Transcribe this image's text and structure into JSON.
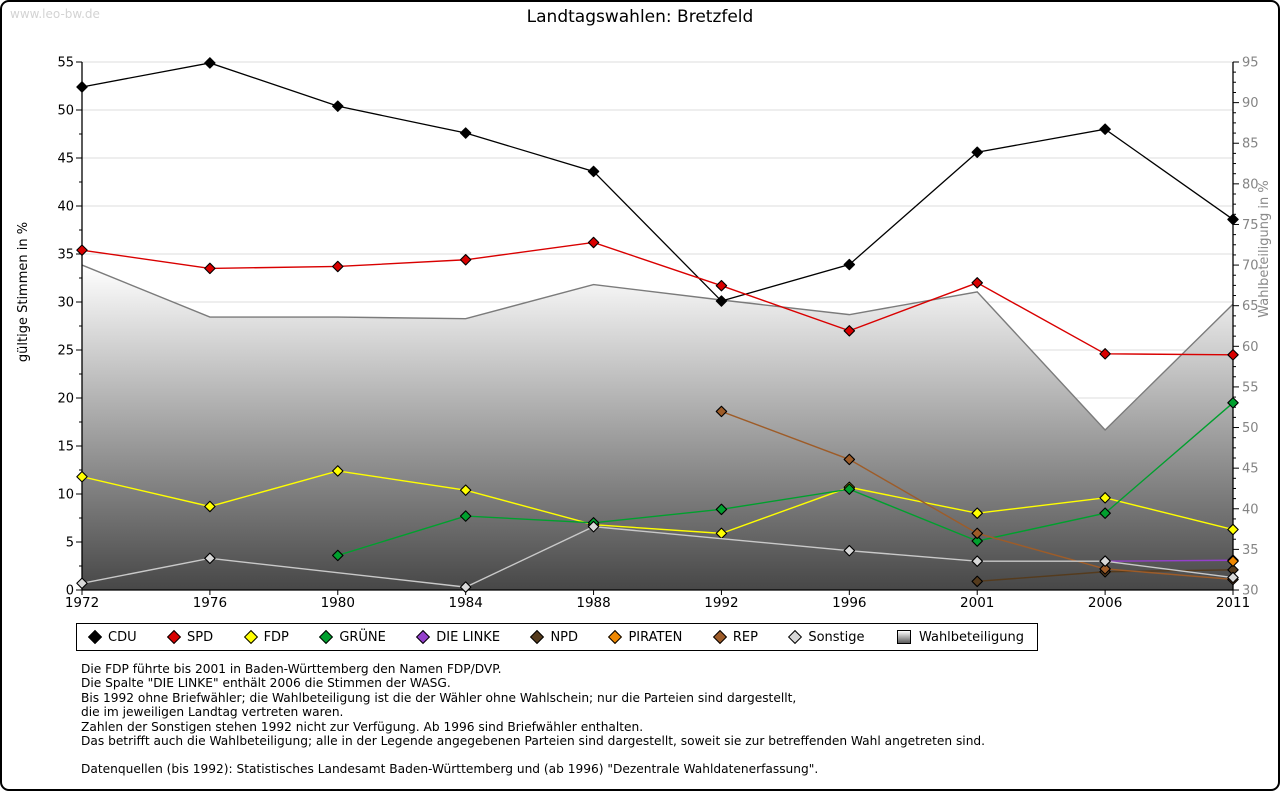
{
  "watermark": "www.leo-bw.de",
  "title": "Landtagswahlen: Bretzfeld",
  "chart_data": {
    "type": "line",
    "x": [
      "1972",
      "1976",
      "1980",
      "1984",
      "1988",
      "1992",
      "1996",
      "2001",
      "2006",
      "2011"
    ],
    "left_axis": {
      "label": "gültige Stimmen in %",
      "min": 0,
      "max": 55,
      "tick_step": 5,
      "minor_step": 2.5
    },
    "right_axis": {
      "label": "Wahlbeteiligung in %",
      "min": 30,
      "max": 95,
      "tick_step": 5,
      "minor_step": 1.25
    },
    "grid": "horizontal lines at every 5 units of left axis",
    "legend_position": "bottom",
    "series": [
      {
        "name": "Wahlbeteiligung",
        "type": "area",
        "axis": "right",
        "color": "#7b7b7b",
        "fill_top": "#ffffff",
        "fill_bottom": "#474747",
        "values": [
          70.0,
          63.6,
          63.6,
          63.4,
          67.6,
          65.7,
          63.9,
          66.7,
          49.7,
          65.2
        ]
      },
      {
        "name": "CDU",
        "type": "line",
        "axis": "left",
        "color": "#000000",
        "values": [
          52.4,
          54.9,
          50.4,
          47.6,
          43.6,
          30.1,
          33.9,
          45.6,
          48.0,
          38.6
        ]
      },
      {
        "name": "SPD",
        "type": "line",
        "axis": "left",
        "color": "#d90000",
        "values": [
          35.4,
          33.5,
          33.7,
          34.4,
          36.2,
          31.7,
          27.0,
          32.0,
          24.6,
          24.5
        ]
      },
      {
        "name": "FDP",
        "type": "line",
        "axis": "left",
        "color": "#ffff00",
        "values": [
          11.8,
          8.7,
          12.4,
          10.4,
          6.8,
          5.9,
          10.7,
          8.0,
          9.6,
          6.3
        ]
      },
      {
        "name": "GRÜNE",
        "type": "line",
        "axis": "left",
        "color": "#00a02e",
        "values": [
          null,
          null,
          3.6,
          7.7,
          7.0,
          8.4,
          10.5,
          5.1,
          8.0,
          19.5
        ]
      },
      {
        "name": "DIE LINKE",
        "type": "line",
        "axis": "left",
        "color": "#9440cc",
        "values": [
          null,
          null,
          null,
          null,
          null,
          null,
          null,
          null,
          3.0,
          3.1
        ]
      },
      {
        "name": "NPD",
        "type": "line",
        "axis": "left",
        "color": "#553b1d",
        "values": [
          null,
          null,
          null,
          null,
          null,
          null,
          null,
          0.9,
          1.9,
          2.1
        ]
      },
      {
        "name": "PIRATEN",
        "type": "line",
        "axis": "left",
        "color": "#f08800",
        "values": [
          null,
          null,
          null,
          null,
          null,
          null,
          null,
          null,
          null,
          3.0
        ]
      },
      {
        "name": "REP",
        "type": "line",
        "axis": "left",
        "color": "#9e5c28",
        "values": [
          null,
          null,
          null,
          null,
          null,
          18.6,
          13.6,
          5.9,
          2.2,
          1.1
        ]
      },
      {
        "name": "Sonstige",
        "type": "line",
        "axis": "left",
        "color": "#c9c9c9",
        "marker_fill": "#d8d8d8",
        "values": [
          0.7,
          3.3,
          null,
          0.3,
          6.6,
          null,
          4.1,
          3.0,
          3.0,
          1.3
        ]
      }
    ]
  },
  "footnotes": {
    "lines": [
      "Die FDP führte bis 2001 in Baden-Württemberg den Namen FDP/DVP.",
      "Die Spalte \"DIE LINKE\" enthält 2006 die Stimmen der WASG.",
      "Bis 1992 ohne Briefwähler; die Wahlbeteiligung ist die der Wähler ohne Wahlschein; nur die Parteien sind dargestellt,",
      "die im jeweiligen Landtag vertreten waren.",
      "Zahlen der Sonstigen stehen 1992 nicht zur Verfügung. Ab 1996 sind Briefwähler enthalten.",
      "Das betrifft auch die Wahlbeteiligung; alle in der Legende angegebenen Parteien sind dargestellt, soweit sie zur betreffenden Wahl angetreten sind."
    ],
    "source": "Datenquellen (bis 1992): Statistisches Landesamt Baden-Württemberg und (ab 1996) \"Dezentrale Wahldatenerfassung\"."
  }
}
